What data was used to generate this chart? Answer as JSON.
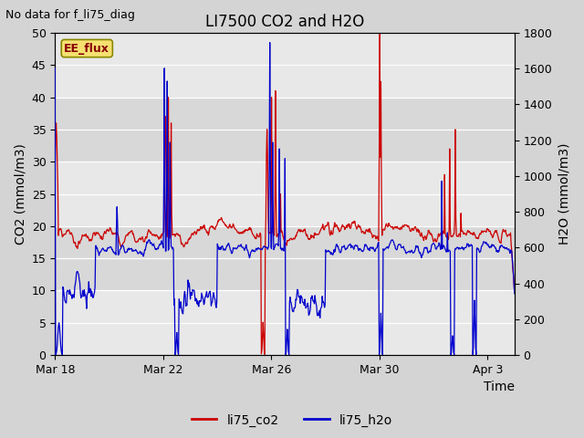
{
  "title": "LI7500 CO2 and H2O",
  "top_left_text": "No data for f_li75_diag",
  "xlabel": "Time",
  "ylabel_left": "CO2 (mmol/m3)",
  "ylabel_right": "H2O (mmol/m3)",
  "ylim_left": [
    0,
    50
  ],
  "ylim_right": [
    0,
    1800
  ],
  "yticks_left": [
    0,
    5,
    10,
    15,
    20,
    25,
    30,
    35,
    40,
    45,
    50
  ],
  "yticks_right": [
    0,
    200,
    400,
    600,
    800,
    1000,
    1200,
    1400,
    1600,
    1800
  ],
  "xtick_labels": [
    "Mar 18",
    "Mar 22",
    "Mar 26",
    "Mar 30",
    "Apr 3"
  ],
  "xtick_pos": [
    0,
    4,
    8,
    12,
    16
  ],
  "xlim": [
    0,
    17
  ],
  "fig_bg_color": "#d4d4d4",
  "plot_bg_color": "#e8e8e8",
  "grid_color": "#ffffff",
  "co2_color": "#cc0000",
  "h2o_color": "#0000cc",
  "legend_label_co2": "li75_co2",
  "legend_label_h2o": "li75_h2o",
  "ee_flux_label": "EE_flux",
  "ee_flux_fg": "#880000",
  "ee_flux_bg": "#f5e070",
  "ee_flux_border": "#888800",
  "title_fontsize": 12,
  "axis_label_fontsize": 10,
  "tick_fontsize": 9,
  "annotation_fontsize": 9,
  "legend_fontsize": 10,
  "line_width": 0.9,
  "seed": 12345,
  "n_days": 17,
  "pts_per_day": 48
}
